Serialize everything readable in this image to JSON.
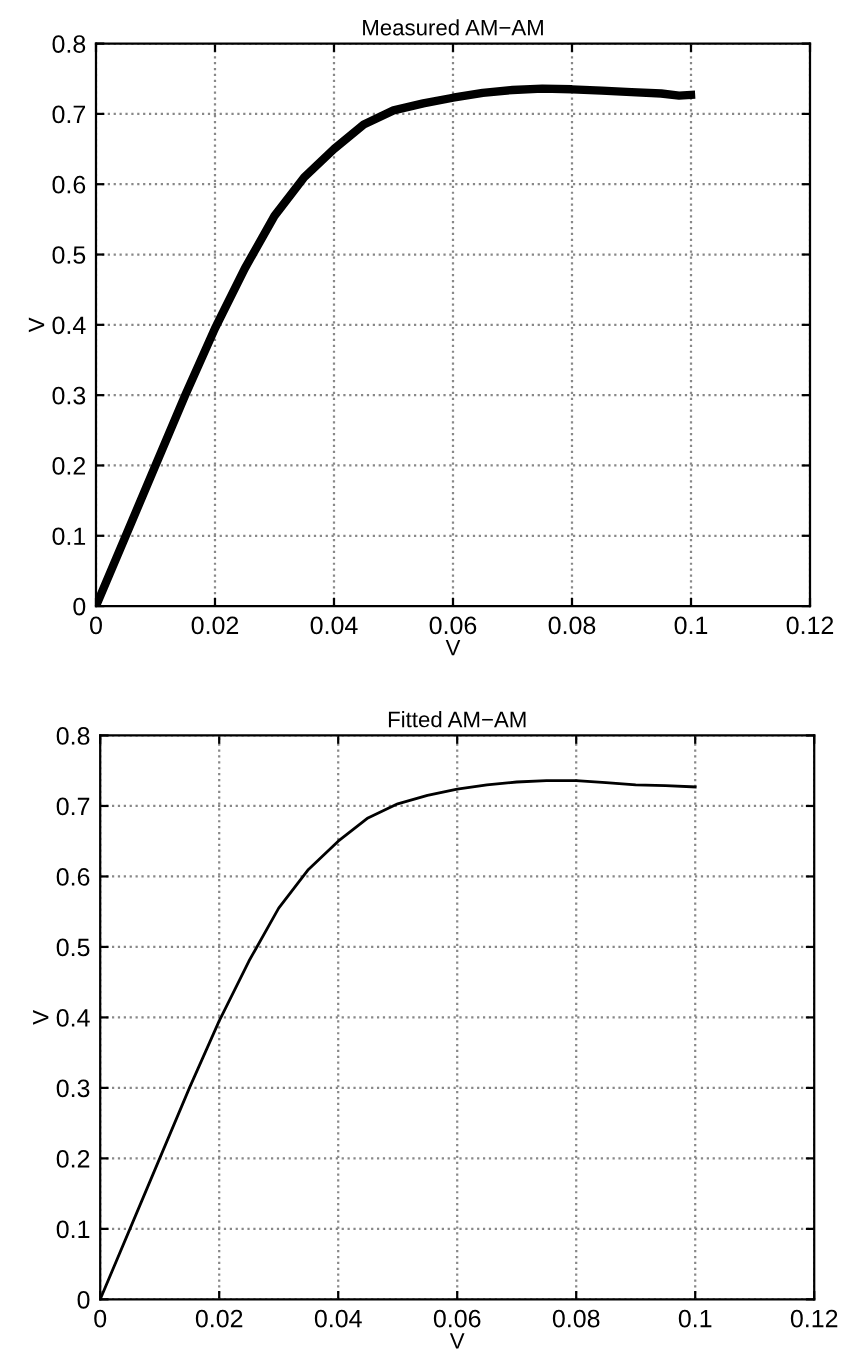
{
  "chart_data": [
    {
      "type": "line",
      "title": "Measured AM−AM",
      "xlabel": "V",
      "ylabel": "V",
      "xlim": [
        0,
        0.12
      ],
      "ylim": [
        0,
        0.8
      ],
      "xticks": [
        0,
        0.02,
        0.04,
        0.06,
        0.08,
        0.1,
        0.12
      ],
      "yticks": [
        0,
        0.1,
        0.2,
        0.3,
        0.4,
        0.5,
        0.6,
        0.7,
        0.8
      ],
      "grid": true,
      "line_style": "solid",
      "x": [
        0,
        0.005,
        0.01,
        0.015,
        0.02,
        0.025,
        0.03,
        0.035,
        0.04,
        0.045,
        0.05,
        0.055,
        0.06,
        0.065,
        0.07,
        0.075,
        0.08,
        0.085,
        0.09,
        0.095,
        0.098,
        0.1
      ],
      "series": [
        {
          "color": "#000000",
          "values": [
            0,
            0.1,
            0.2,
            0.3,
            0.395,
            0.48,
            0.555,
            0.61,
            0.65,
            0.685,
            0.705,
            0.715,
            0.723,
            0.73,
            0.734,
            0.736,
            0.735,
            0.733,
            0.731,
            0.729,
            0.726,
            0.727
          ]
        }
      ]
    },
    {
      "type": "line",
      "title": "Fitted AM−AM",
      "xlabel": "V",
      "ylabel": "V",
      "xlim": [
        0,
        0.12
      ],
      "ylim": [
        0,
        0.8
      ],
      "xticks": [
        0,
        0.02,
        0.04,
        0.06,
        0.08,
        0.1,
        0.12
      ],
      "yticks": [
        0,
        0.1,
        0.2,
        0.3,
        0.4,
        0.5,
        0.6,
        0.7,
        0.8
      ],
      "grid": true,
      "line_style": "solid",
      "x": [
        0,
        0.005,
        0.01,
        0.015,
        0.02,
        0.025,
        0.03,
        0.035,
        0.04,
        0.045,
        0.05,
        0.055,
        0.06,
        0.065,
        0.07,
        0.075,
        0.08,
        0.085,
        0.09,
        0.095,
        0.1
      ],
      "series": [
        {
          "color": "#000000",
          "values": [
            0,
            0.1,
            0.2,
            0.3,
            0.395,
            0.48,
            0.555,
            0.61,
            0.65,
            0.683,
            0.703,
            0.715,
            0.724,
            0.73,
            0.734,
            0.736,
            0.736,
            0.733,
            0.73,
            0.729,
            0.727
          ]
        }
      ]
    }
  ]
}
